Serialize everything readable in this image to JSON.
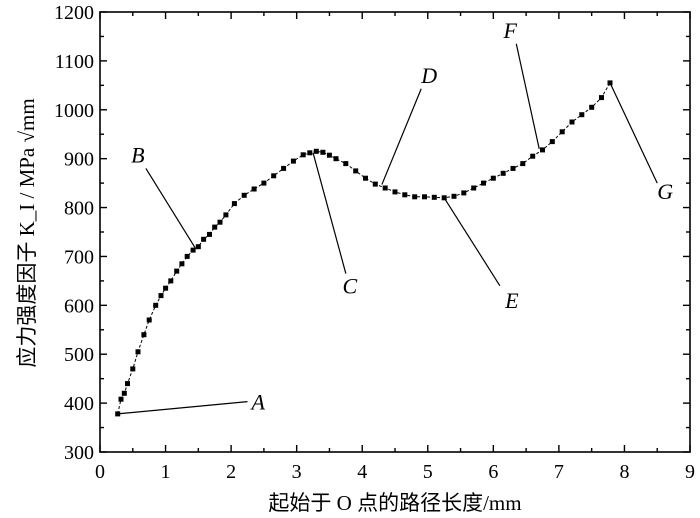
{
  "chart_data": {
    "type": "line",
    "title": "",
    "xlabel": "起始于 O 点的路径长度/mm",
    "ylabel": "应力强度因子 K_I / MPa √mm",
    "xlim": [
      0,
      9
    ],
    "ylim": [
      300,
      1200
    ],
    "xticks": [
      "0",
      "1",
      "2",
      "3",
      "4",
      "5",
      "6",
      "7",
      "8",
      "9"
    ],
    "yticks": [
      "300",
      "400",
      "500",
      "600",
      "700",
      "800",
      "900",
      "1000",
      "1100",
      "1200"
    ],
    "grid": false,
    "x": [
      0.27,
      0.32,
      0.37,
      0.42,
      0.5,
      0.58,
      0.67,
      0.75,
      0.85,
      0.93,
      1.0,
      1.08,
      1.17,
      1.25,
      1.33,
      1.42,
      1.5,
      1.58,
      1.67,
      1.75,
      1.83,
      1.92,
      2.05,
      2.2,
      2.35,
      2.5,
      2.65,
      2.8,
      2.95,
      3.1,
      3.2,
      3.3,
      3.4,
      3.5,
      3.6,
      3.75,
      3.9,
      4.05,
      4.2,
      4.35,
      4.5,
      4.65,
      4.8,
      4.95,
      5.1,
      5.25,
      5.4,
      5.55,
      5.7,
      5.85,
      6.0,
      6.15,
      6.3,
      6.45,
      6.6,
      6.75,
      6.9,
      7.05,
      7.2,
      7.35,
      7.5,
      7.65,
      7.78
    ],
    "values": [
      378,
      408,
      420,
      440,
      470,
      505,
      540,
      570,
      600,
      620,
      635,
      650,
      670,
      685,
      700,
      713,
      720,
      735,
      745,
      760,
      770,
      785,
      808,
      825,
      838,
      850,
      865,
      880,
      895,
      908,
      912,
      915,
      913,
      907,
      900,
      890,
      875,
      860,
      848,
      840,
      832,
      826,
      822,
      822,
      821,
      820,
      823,
      830,
      840,
      850,
      860,
      870,
      880,
      890,
      905,
      918,
      935,
      955,
      975,
      990,
      1005,
      1025,
      1055
    ],
    "annotations": [
      {
        "label": "A",
        "x": 0.27,
        "y": 378,
        "text_x": 2.25,
        "text_y": 403
      },
      {
        "label": "B",
        "x": 1.45,
        "y": 718,
        "text_x": 0.7,
        "text_y": 880
      },
      {
        "label": "C",
        "x": 3.25,
        "y": 912,
        "text_x": 3.75,
        "text_y": 665
      },
      {
        "label": "D",
        "x": 4.3,
        "y": 847,
        "text_x": 4.9,
        "text_y": 1043
      },
      {
        "label": "E",
        "x": 5.25,
        "y": 820,
        "text_x": 6.1,
        "text_y": 640
      },
      {
        "label": "F",
        "x": 6.7,
        "y": 920,
        "text_x": 6.35,
        "text_y": 1135
      },
      {
        "label": "G",
        "x": 7.78,
        "y": 1055,
        "text_x": 8.5,
        "text_y": 850
      }
    ]
  }
}
